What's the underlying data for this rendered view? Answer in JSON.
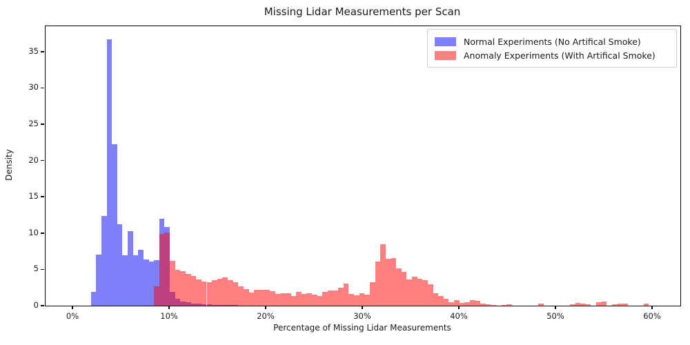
{
  "figure": {
    "title": "Missing Lidar Measurements per Scan",
    "xlabel": "Percentage of Missing Lidar Measurements",
    "ylabel": "Density"
  },
  "legend": {
    "items": [
      {
        "label": "Normal Experiments (No Artifical Smoke)",
        "swatch_color": "#7f7ffa"
      },
      {
        "label": "Anomaly Experiments (With Artifical Smoke)",
        "swatch_color": "#fc8181"
      }
    ]
  },
  "chart_data": {
    "type": "bar",
    "subtype": "overlapping-density-histograms",
    "title": "Missing Lidar Measurements per Scan",
    "xlabel": "Percentage of Missing Lidar Measurements",
    "ylabel": "Density",
    "xlim_pct": [
      -2.79,
      62.93
    ],
    "ylim": [
      0,
      38.5
    ],
    "x_tick_values": [
      0,
      10,
      20,
      30,
      40,
      50,
      60
    ],
    "x_tick_labels": [
      "0%",
      "10%",
      "20%",
      "30%",
      "40%",
      "50%",
      "60%"
    ],
    "y_tick_values": [
      0,
      5,
      10,
      15,
      20,
      25,
      30,
      35
    ],
    "y_tick_labels": [
      "0",
      "5",
      "10",
      "15",
      "20",
      "25",
      "30",
      "35"
    ],
    "grid": false,
    "legend_position": "upper right",
    "colors": {
      "normal_fill": "#7f7ffa",
      "anomaly_fill": "#fc8181",
      "overlap_fill": "#bd417f",
      "axis": "#000000"
    },
    "series": [
      {
        "name": "Normal Experiments (No Artifical Smoke)",
        "base_color": "#0000ff",
        "alpha": 0.5,
        "css_fill": "rgb(127,127,250)",
        "bin_start_pct": 1.9,
        "bin_width_pct": 0.545,
        "densities": [
          1.9,
          7.0,
          12.4,
          36.7,
          22.2,
          11.2,
          6.9,
          10.3,
          6.9,
          7.7,
          6.4,
          6.1,
          6.3,
          12.0,
          10.8,
          1.9,
          0.95,
          0.6,
          0.45,
          0.3,
          0.25,
          0.2,
          0.15,
          0.12,
          0.1,
          0.1,
          0.08,
          0.06
        ]
      },
      {
        "name": "Anomaly Experiments (With Artifical Smoke)",
        "base_color": "#ff0000",
        "alpha": 0.5,
        "css_fill": "rgba(253,2,2,0.5)",
        "bin_start_pct": 8.44,
        "bin_width_pct": 0.545,
        "densities": [
          2.7,
          9.9,
          10.1,
          6.2,
          4.9,
          4.75,
          4.4,
          4.1,
          3.65,
          3.3,
          3.2,
          3.5,
          3.7,
          3.9,
          3.5,
          3.2,
          2.7,
          2.25,
          1.85,
          2.15,
          2.15,
          2.15,
          1.95,
          1.6,
          1.75,
          1.75,
          1.3,
          1.9,
          1.6,
          1.75,
          1.5,
          1.3,
          1.9,
          2.1,
          2.1,
          2.5,
          3.0,
          1.6,
          1.45,
          1.7,
          1.55,
          3.2,
          6.1,
          8.45,
          6.5,
          6.55,
          5.1,
          4.7,
          3.6,
          4.0,
          3.75,
          3.5,
          2.9,
          1.75,
          1.3,
          0.95,
          0.5,
          0.8,
          0.4,
          0.5,
          0.8,
          0.65,
          0.3,
          0.15,
          0.1,
          0,
          0.1,
          0.2,
          0,
          0,
          0,
          0,
          0,
          0.25,
          0,
          0,
          0,
          0,
          0,
          0.2,
          0.4,
          0.25,
          0.15,
          0,
          0.45,
          0.55,
          0,
          0.2,
          0.25,
          0.3,
          0,
          0,
          0,
          0.3
        ]
      }
    ]
  }
}
